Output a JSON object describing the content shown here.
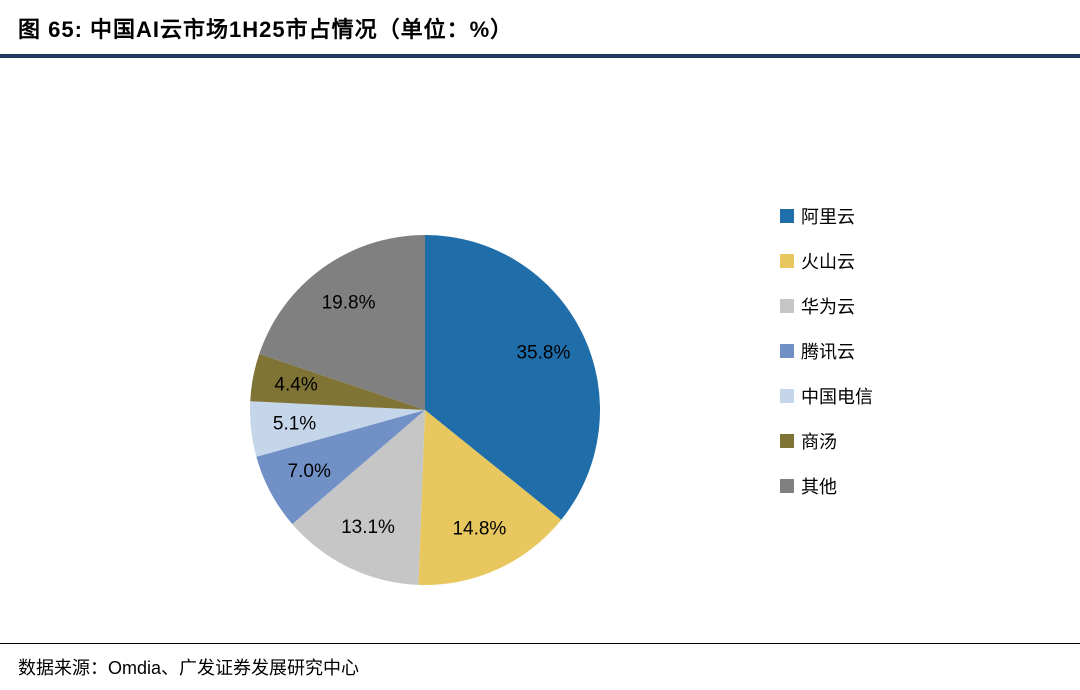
{
  "header": {
    "title": "图  65:  中国AI云市场1H25市占情况（单位：%）",
    "accent_color": "#1F3864"
  },
  "chart_data": {
    "type": "pie",
    "title": "中国AI云市场1H25市占情况",
    "unit": "%",
    "categories": [
      "阿里云",
      "火山云",
      "华为云",
      "腾讯云",
      "中国电信",
      "商汤",
      "其他"
    ],
    "values": [
      35.8,
      14.8,
      13.1,
      7.0,
      5.1,
      4.4,
      19.8
    ],
    "labels": [
      "35.8%",
      "14.8%",
      "13.1%",
      "7.0%",
      "5.1%",
      "4.4%",
      "19.8%"
    ],
    "colors": [
      "#1F6DA9",
      "#E8C85E",
      "#C6C6C6",
      "#7191C6",
      "#C5D5EA",
      "#7F7335",
      "#808080"
    ],
    "start_angle_deg": -90,
    "direction": "clockwise",
    "legend_position": "right"
  },
  "footer": {
    "source": "数据来源：Omdia、广发证券发展研究中心"
  }
}
